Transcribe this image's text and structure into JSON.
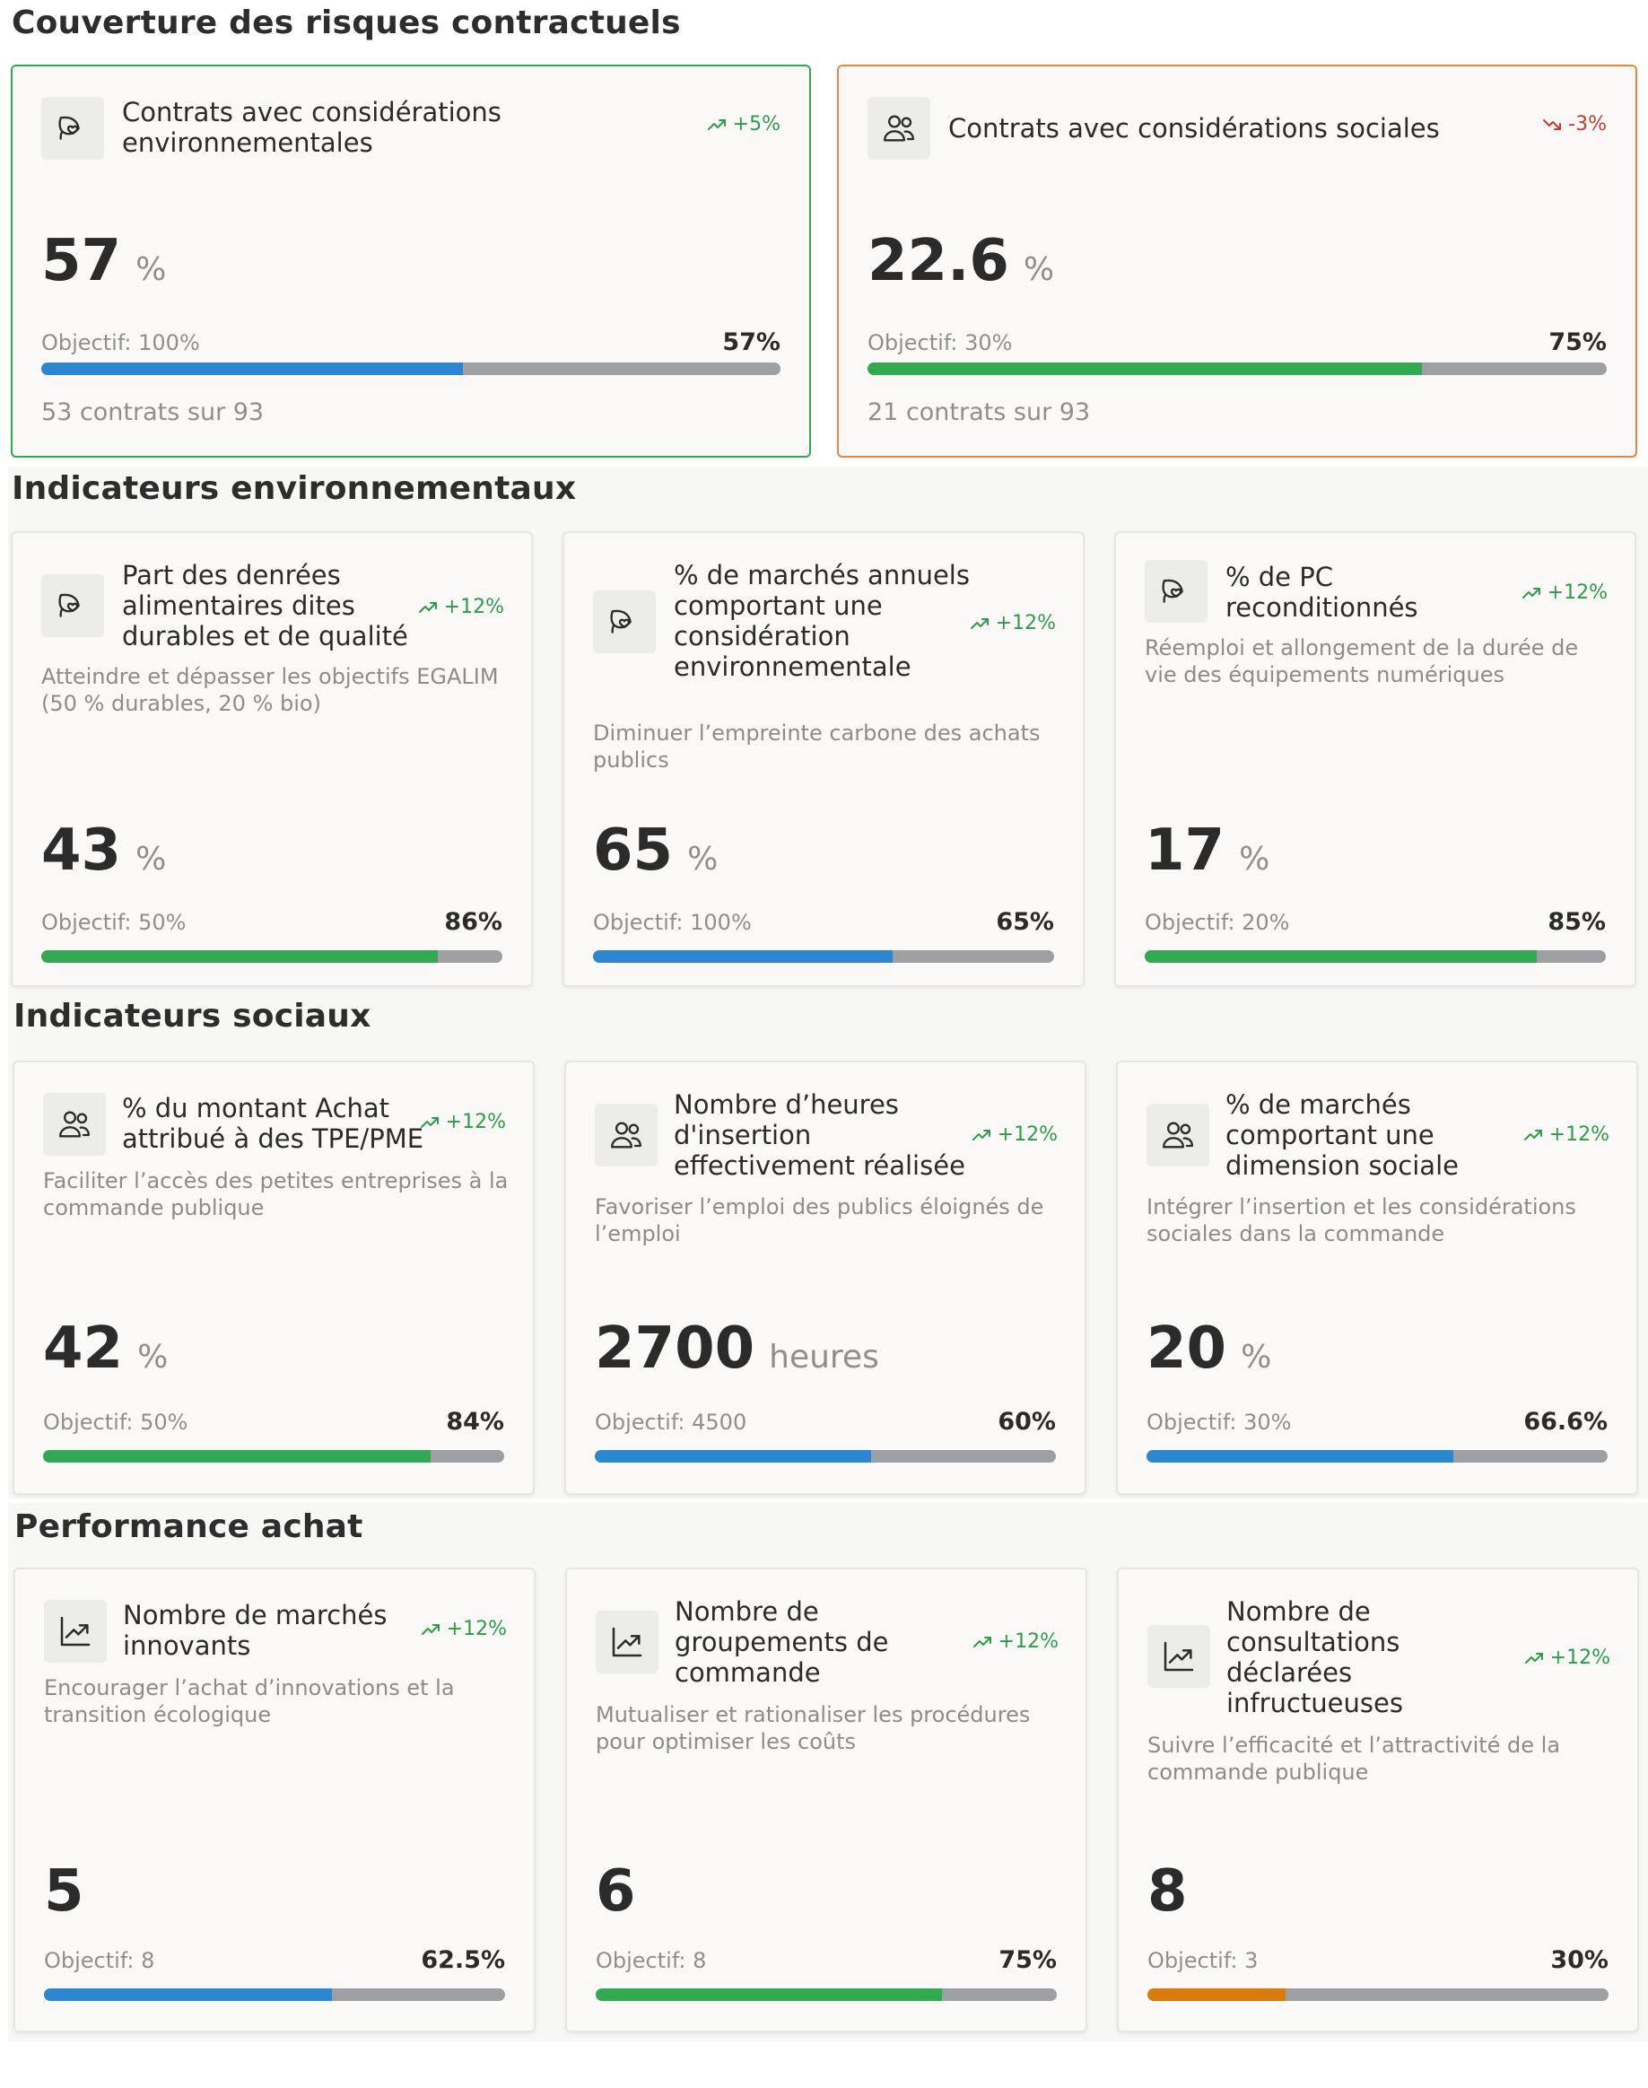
{
  "colors": {
    "blue": "#2c86d0",
    "green": "#33a853",
    "orange": "#d97a0f",
    "track": "#9d9fa3",
    "trend_up": "#2e9b4a",
    "trend_down": "#c93a33"
  },
  "sections": {
    "risk": {
      "title": "Couverture des risques contractuels",
      "cards": [
        {
          "icon": "leaf-heart-icon",
          "title": "Contrats avec considérations environnementales",
          "trend": "+5%",
          "trend_dir": "up",
          "value": "57",
          "unit": "%",
          "objective": "Objectif: 100%",
          "pct": "57%",
          "progress": 0.57,
          "bar_color": "blue",
          "contracts": "53 contrats sur 93"
        },
        {
          "icon": "users-icon",
          "title": "Contrats avec considérations sociales",
          "trend": "-3%",
          "trend_dir": "down",
          "value": "22.6",
          "unit": "%",
          "objective": "Objectif: 30%",
          "pct": "75%",
          "progress": 0.75,
          "bar_color": "green",
          "contracts": "21 contrats sur 93"
        }
      ]
    },
    "env": {
      "title": "Indicateurs environnementaux",
      "cards": [
        {
          "icon": "leaf-heart-icon",
          "title": "Part des denrées alimentaires dites durables et de qualité",
          "trend": "+12%",
          "desc": "Atteindre et dépasser les objectifs EGALIM (50 % durables, 20 % bio)",
          "value": "43",
          "unit": "%",
          "objective": "Objectif: 50%",
          "pct": "86%",
          "progress": 0.86,
          "bar_color": "green"
        },
        {
          "icon": "leaf-heart-icon",
          "title": "% de marchés annuels comportant une considération environnementale",
          "trend": "+12%",
          "desc": "Diminuer l’empreinte carbone des achats publics",
          "value": "65",
          "unit": "%",
          "objective": "Objectif: 100%",
          "pct": "65%",
          "progress": 0.65,
          "bar_color": "blue"
        },
        {
          "icon": "leaf-heart-icon",
          "title": "% de PC reconditionnés",
          "trend": "+12%",
          "desc": "Réemploi et allongement de la durée de vie des équipements numériques",
          "value": "17",
          "unit": "%",
          "objective": "Objectif: 20%",
          "pct": "85%",
          "progress": 0.85,
          "bar_color": "green"
        }
      ]
    },
    "social": {
      "title": "Indicateurs sociaux",
      "cards": [
        {
          "icon": "users-icon",
          "title": "% du montant Achat attribué à des TPE/PME",
          "trend": "+12%",
          "desc": "Faciliter l’accès des petites entreprises à la commande publique",
          "value": "42",
          "unit": "%",
          "objective": "Objectif: 50%",
          "pct": "84%",
          "progress": 0.84,
          "bar_color": "green"
        },
        {
          "icon": "users-icon",
          "title": "Nombre d’heures d'insertion effectivement réalisée",
          "trend": "+12%",
          "desc": "Favoriser l’emploi des publics éloignés de l’emploi",
          "value": "2700",
          "unit": "heures",
          "objective": "Objectif: 4500",
          "pct": "60%",
          "progress": 0.6,
          "bar_color": "blue"
        },
        {
          "icon": "users-icon",
          "title": "% de marchés comportant une dimension sociale",
          "trend": "+12%",
          "desc": "Intégrer l’insertion et les considérations sociales dans la commande",
          "value": "20",
          "unit": "%",
          "objective": "Objectif: 30%",
          "pct": "66.6%",
          "progress": 0.666,
          "bar_color": "blue"
        }
      ]
    },
    "perf": {
      "title": "Performance achat",
      "cards": [
        {
          "icon": "chart-trend-icon",
          "title": "Nombre de marchés innovants",
          "trend": "+12%",
          "desc": "Encourager l’achat d’innovations et la transition écologique",
          "value": "5",
          "unit": "",
          "objective": "Objectif: 8",
          "pct": "62.5%",
          "progress": 0.625,
          "bar_color": "blue"
        },
        {
          "icon": "chart-trend-icon",
          "title": "Nombre de groupements de commande",
          "trend": "+12%",
          "desc": "Mutualiser et rationaliser les procédures pour optimiser les coûts",
          "value": "6",
          "unit": "",
          "objective": "Objectif: 8",
          "pct": "75%",
          "progress": 0.75,
          "bar_color": "green"
        },
        {
          "icon": "chart-trend-icon",
          "title": "Nombre de consultations déclarées infructueuses",
          "trend": "+12%",
          "desc": "Suivre l’efficacité et l’attractivité de la commande publique",
          "value": "8",
          "unit": "",
          "objective": "Objectif: 3",
          "pct": "30%",
          "progress": 0.3,
          "bar_color": "orange"
        }
      ]
    }
  }
}
